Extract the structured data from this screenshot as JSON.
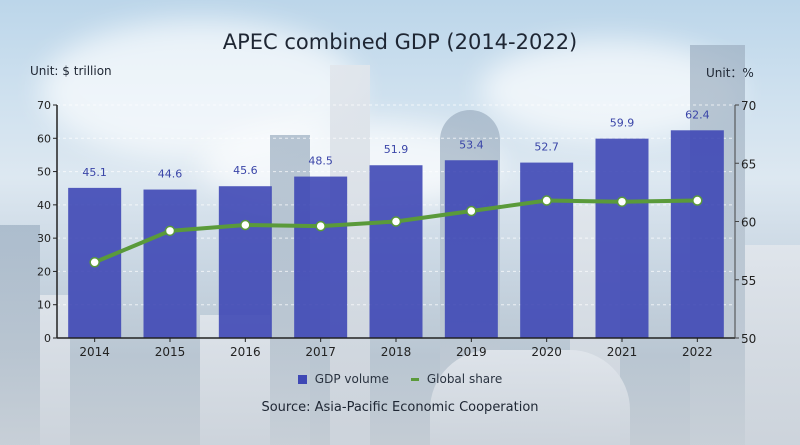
{
  "title": "APEC combined GDP (2014-2022)",
  "unit_left": "Unit: $ trillion",
  "unit_right": "Unit：%",
  "legend": {
    "bar_label": "GDP volume",
    "line_label": "Global share"
  },
  "source": "Source: Asia-Pacific Economic Cooperation",
  "colors": {
    "bar": "#3f48b5",
    "bar_label": "#3a45a8",
    "line": "#5a9a3a",
    "marker": "#ffffff",
    "axis": "#222222"
  },
  "chart_data": {
    "type": "bar+line",
    "title": "APEC combined GDP (2014-2022)",
    "categories": [
      "2014",
      "2015",
      "2016",
      "2017",
      "2018",
      "2019",
      "2020",
      "2021",
      "2022"
    ],
    "series": [
      {
        "name": "GDP volume",
        "type": "bar",
        "axis": "left",
        "unit": "$ trillion",
        "values": [
          45.1,
          44.6,
          45.6,
          48.5,
          51.9,
          53.4,
          52.7,
          59.9,
          62.4
        ]
      },
      {
        "name": "Global share",
        "type": "line",
        "axis": "right",
        "unit": "%",
        "values": [
          56.5,
          59.2,
          59.7,
          59.6,
          60.0,
          60.9,
          61.8,
          61.7,
          61.8
        ]
      }
    ],
    "ylabel": "Unit: $ trillion",
    "ylim": [
      0,
      70
    ],
    "yticks": [
      0,
      10,
      20,
      30,
      40,
      50,
      60,
      70
    ],
    "y2label": "Unit：%",
    "y2lim": [
      50,
      70
    ],
    "y2ticks": [
      50,
      55,
      60,
      65,
      70
    ],
    "legend_position": "bottom",
    "grid": "dashed horizontal faint",
    "source": "Source: Asia-Pacific Economic Cooperation"
  }
}
